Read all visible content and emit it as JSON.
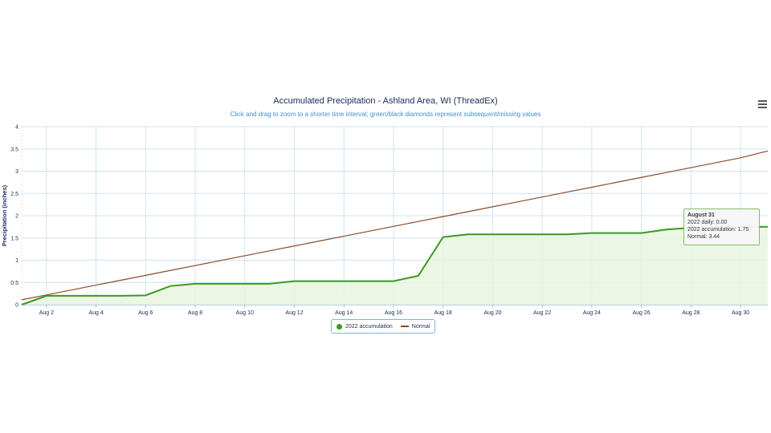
{
  "header": {
    "title": "Accumulated Precipitation - Ashland Area, WI (ThreadEx)",
    "subtitle": "Click and drag to zoom to a shorter time interval; green/black diamonds represent subsequent/missing values",
    "menu_icon": "hamburger-menu-icon"
  },
  "colors": {
    "accumulation": "#3a9a1e",
    "normal": "#8b4a2b",
    "fill": "#e8f5e1",
    "grid": "#cfe3f3"
  },
  "chart_data": {
    "type": "line",
    "title": "Accumulated Precipitation - Ashland Area, WI (ThreadEx)",
    "ylabel": "Precipitation (inches)",
    "xlabel": "",
    "ylim": [
      0,
      4
    ],
    "yticks": [
      "0",
      "0.5",
      "1",
      "1.5",
      "2",
      "2.5",
      "3",
      "3.5",
      "4"
    ],
    "xticks": [
      "Aug 2",
      "Aug 4",
      "Aug 6",
      "Aug 8",
      "Aug 10",
      "Aug 12",
      "Aug 14",
      "Aug 16",
      "Aug 18",
      "Aug 20",
      "Aug 22",
      "Aug 24",
      "Aug 26",
      "Aug 28",
      "Aug 30"
    ],
    "x": [
      1,
      2,
      3,
      4,
      5,
      6,
      7,
      8,
      9,
      10,
      11,
      12,
      13,
      14,
      15,
      16,
      17,
      18,
      19,
      20,
      21,
      22,
      23,
      24,
      25,
      26,
      27,
      28,
      29,
      30,
      31
    ],
    "grid": true,
    "legend_position": "bottom-center",
    "series": [
      {
        "name": "2022 accumulation",
        "values": [
          0,
          0.2,
          0.2,
          0.2,
          0.2,
          0.21,
          0.42,
          0.47,
          0.47,
          0.47,
          0.47,
          0.53,
          0.53,
          0.53,
          0.53,
          0.53,
          0.65,
          1.52,
          1.58,
          1.58,
          1.58,
          1.58,
          1.58,
          1.61,
          1.61,
          1.61,
          1.69,
          1.73,
          1.75,
          1.75,
          1.75
        ]
      },
      {
        "name": "Normal",
        "values": [
          0.11,
          0.22,
          0.33,
          0.44,
          0.55,
          0.66,
          0.77,
          0.88,
          0.99,
          1.1,
          1.21,
          1.32,
          1.43,
          1.54,
          1.65,
          1.76,
          1.87,
          1.98,
          2.09,
          2.2,
          2.31,
          2.42,
          2.53,
          2.64,
          2.75,
          2.86,
          2.97,
          3.08,
          3.19,
          3.3,
          3.44
        ]
      }
    ]
  },
  "legend": {
    "accumulation_label": "2022 accumulation",
    "normal_label": "Normal"
  },
  "tooltip": {
    "title": "August 31",
    "daily": "2022 daily: 0.00",
    "accumulation": "2022 accumulation: 1.75",
    "normal": "Normal: 3.44"
  }
}
